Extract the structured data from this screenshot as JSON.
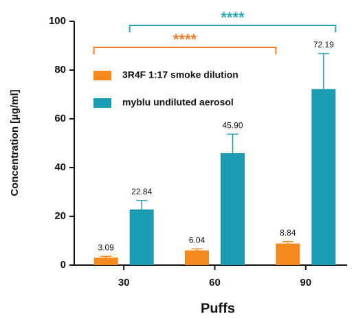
{
  "chart_data": {
    "type": "bar",
    "x_label": "Puffs",
    "y_label": "Concentration [µg/ml]",
    "categories": [
      "30",
      "60",
      "90"
    ],
    "series": [
      {
        "name": "3R4F 1:17 smoke dilution",
        "color": "#f5891f",
        "values": [
          3.09,
          6.04,
          8.84
        ],
        "value_labels": [
          "3.09",
          "6.04",
          "8.84"
        ],
        "errors": [
          0.5,
          0.6,
          0.8
        ]
      },
      {
        "name": "myblu undiluted aerosol",
        "color": "#1a9db3",
        "values": [
          22.84,
          45.9,
          72.19
        ],
        "value_labels": [
          "22.84",
          "45.90",
          "72.19"
        ],
        "errors": [
          3.7,
          7.8,
          14.6
        ]
      }
    ],
    "ylim": [
      0,
      100
    ],
    "yticks": [
      0,
      20,
      40,
      60,
      80,
      100
    ],
    "annotations": [
      {
        "text": "****",
        "color": "#f07a2a"
      },
      {
        "text": "****",
        "color": "#2aa3b5"
      }
    ]
  }
}
